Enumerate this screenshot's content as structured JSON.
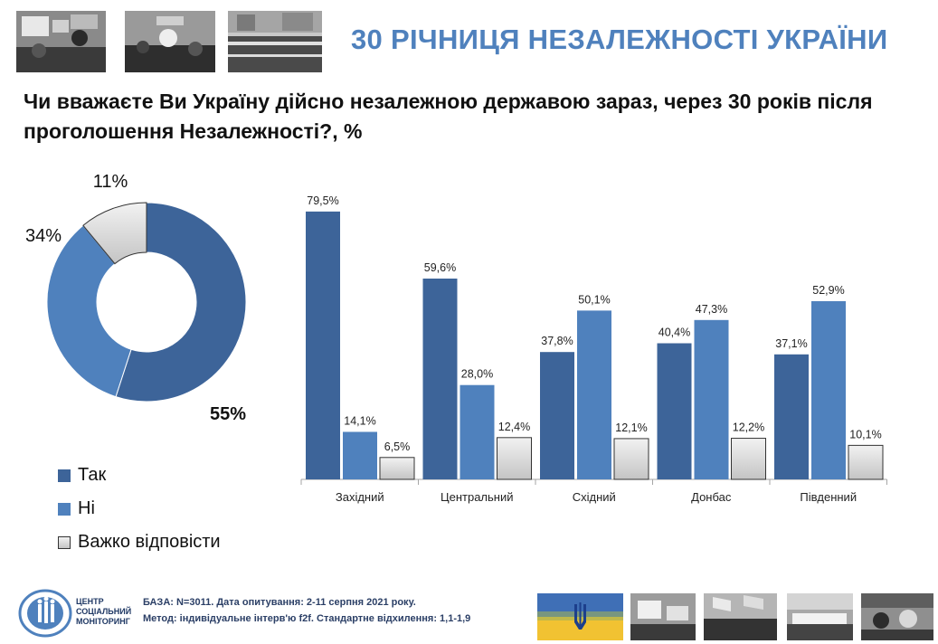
{
  "header": {
    "title": "30 РІЧНИЦЯ НЕЗАЛЕЖНОСТІ УКРАЇНИ",
    "photos": [
      "protest-photo",
      "crowd-celebration-photo",
      "square-rally-photo"
    ]
  },
  "question": "Чи вважаєте Ви Україну дійсно незалежною державою зараз, через 30 років після проголошення Незалежності?, %",
  "chart_data": [
    {
      "type": "pie",
      "style": "donut",
      "labels": [
        "Так",
        "Ні",
        "Важко відповісти"
      ],
      "values": [
        55,
        34,
        11
      ],
      "data_labels": [
        "55%",
        "34%",
        "11%"
      ]
    },
    {
      "type": "bar",
      "categories": [
        "Західний",
        "Центральний",
        "Східний",
        "Донбас",
        "Південний"
      ],
      "series": [
        {
          "name": "Так",
          "values": [
            79.5,
            59.6,
            37.8,
            40.4,
            37.1
          ],
          "labels": [
            "79,5%",
            "59,6%",
            "37,8%",
            "40,4%",
            "37,1%"
          ]
        },
        {
          "name": "Ні",
          "values": [
            14.1,
            28.0,
            50.1,
            47.3,
            52.9
          ],
          "labels": [
            "14,1%",
            "28,0%",
            "50,1%",
            "47,3%",
            "52,9%"
          ]
        },
        {
          "name": "Важко відповісти",
          "values": [
            6.5,
            12.4,
            12.1,
            12.2,
            10.1
          ],
          "labels": [
            "6,5%",
            "12,4%",
            "12,1%",
            "12,2%",
            "10,1%"
          ]
        }
      ],
      "ylim": [
        0,
        80
      ],
      "grid": false
    }
  ],
  "legend": [
    {
      "label": "Так",
      "color": "#3d6499"
    },
    {
      "label": "Ні",
      "color": "#4f81bd"
    },
    {
      "label": "Важко відповісти",
      "color": "#dcdcdc"
    }
  ],
  "footer": {
    "logo_lines": [
      "ЦЕНТР",
      "СОЦІАЛЬНИЙ",
      "МОНІТОРИНГ"
    ],
    "base_line": "БАЗА: N=3011.  Дата опитування: 2-11 серпня 2021 року.",
    "method_line": "Метод: індивідуальне інтерв'ю f2f. Стандартне відхилення: 1,1-1,9",
    "photos": [
      "ukraine-flag-trident-image",
      "protest-signs-photo",
      "flags-crowd-photo",
      "marching-crowd-photo",
      "street-crowd-photo"
    ]
  }
}
